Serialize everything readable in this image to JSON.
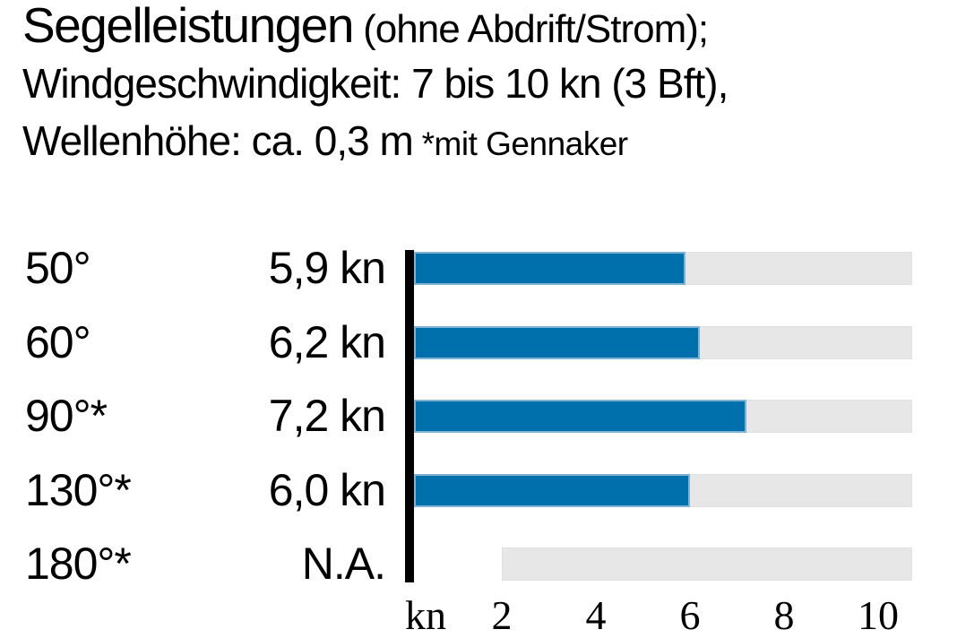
{
  "header": {
    "title": "Segelleistungen",
    "title_suffix": " (ohne Abdrift/Strom);",
    "line2": "Windgeschwindigkeit: 7 bis 10 kn (3 Bft),",
    "line3": "Wellenhöhe: ca. 0,3 m",
    "line3_note": " *mit Gennaker"
  },
  "chart_data": {
    "type": "bar",
    "orientation": "horizontal",
    "title": "Segelleistungen (ohne Abdrift/Strom)",
    "subtitle": "Windgeschwindigkeit: 7 bis 10 kn (3 Bft), Wellenhöhe: ca. 0,3 m",
    "footnote": "*mit Gennaker",
    "unit": "kn",
    "categories": [
      "50°",
      "60°",
      "90°*",
      "130°*",
      "180°*"
    ],
    "values": [
      5.9,
      6.2,
      7.2,
      6.0,
      null
    ],
    "value_labels": [
      "5,9 kn",
      "6,2 kn",
      "7,2 kn",
      "6,0 kn",
      "N.A."
    ],
    "x_axis": {
      "label": "kn",
      "ticks": [
        2,
        4,
        6,
        8,
        10
      ],
      "range": [
        0,
        10.7
      ]
    },
    "na_track_start": 2,
    "grid": false,
    "legend": false,
    "colors": {
      "bar": "#0070ad",
      "bar_edge": "#7fb3d5",
      "track": "#e7e7e7",
      "axis": "#000000",
      "text": "#000000"
    }
  }
}
